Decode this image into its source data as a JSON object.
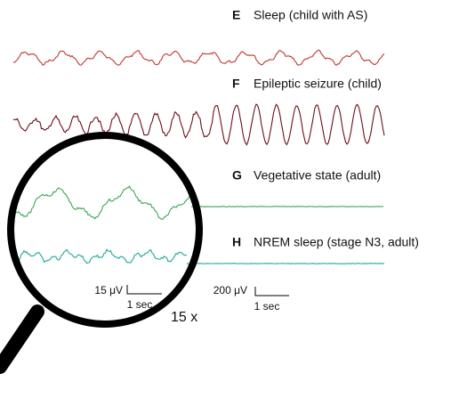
{
  "panels": [
    {
      "letter": "E",
      "label": "Sleep (child with AS)"
    },
    {
      "letter": "F",
      "label": "Epileptic seizure (child)"
    },
    {
      "letter": "G",
      "label": "Vegetative state (adult)"
    },
    {
      "letter": "H",
      "label": "NREM sleep (stage N3, adult)"
    }
  ],
  "magnified_scale": {
    "amplitude": "15 μV",
    "time": "1 sec"
  },
  "scale": {
    "amplitude": "200 μV",
    "time": "1 sec"
  },
  "magnification": "15 x"
}
